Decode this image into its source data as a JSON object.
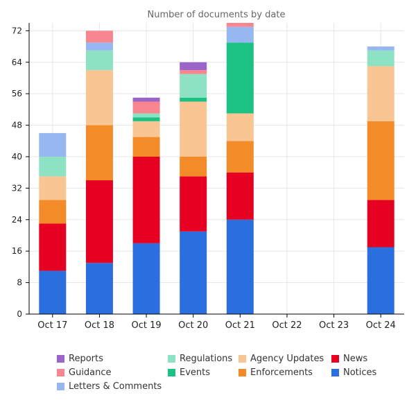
{
  "chart_data": {
    "type": "bar",
    "stacked": true,
    "title": "Number of documents by date",
    "xlabel": "",
    "ylabel": "",
    "categories": [
      "Oct 17",
      "Oct 18",
      "Oct 19",
      "Oct 20",
      "Oct 21",
      "Oct 22",
      "Oct 23",
      "Oct 24"
    ],
    "ylim": [
      0,
      74
    ],
    "yticks": [
      0,
      8,
      16,
      24,
      32,
      40,
      48,
      56,
      64,
      72
    ],
    "grid": true,
    "legend_position": "bottom",
    "series": [
      {
        "name": "Notices",
        "color": "#2b6ee0",
        "values": [
          11,
          13,
          18,
          21,
          24,
          0,
          0,
          17
        ]
      },
      {
        "name": "News",
        "color": "#e60022",
        "values": [
          12,
          21,
          22,
          14,
          12,
          0,
          0,
          12
        ]
      },
      {
        "name": "Enforcements",
        "color": "#f38b29",
        "values": [
          6,
          14,
          5,
          5,
          8,
          0,
          0,
          20
        ]
      },
      {
        "name": "Agency Updates",
        "color": "#f8c593",
        "values": [
          6,
          14,
          4,
          14,
          7,
          0,
          0,
          14
        ]
      },
      {
        "name": "Events",
        "color": "#1bc283",
        "values": [
          0,
          0,
          1,
          1,
          18,
          0,
          0,
          0
        ]
      },
      {
        "name": "Regulations",
        "color": "#8de2c3",
        "values": [
          5,
          5,
          1,
          6,
          0,
          0,
          0,
          4
        ]
      },
      {
        "name": "Letters & Comments",
        "color": "#96b7f0",
        "values": [
          6,
          2,
          0,
          0,
          4,
          0,
          0,
          1
        ]
      },
      {
        "name": "Guidance",
        "color": "#f8858f",
        "values": [
          0,
          3,
          3,
          1,
          1,
          0,
          0,
          0
        ]
      },
      {
        "name": "Reports",
        "color": "#9b64c8",
        "values": [
          0,
          0,
          1,
          2,
          0,
          0,
          0,
          0
        ]
      }
    ],
    "legend_order": [
      "Reports",
      "Regulations",
      "Agency Updates",
      "News",
      "Guidance",
      "Events",
      "Enforcements",
      "Notices",
      "Letters & Comments"
    ]
  }
}
